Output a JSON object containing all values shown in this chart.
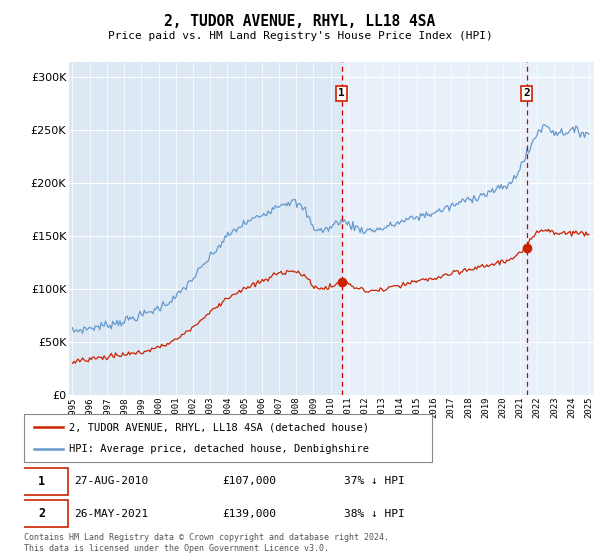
{
  "title": "2, TUDOR AVENUE, RHYL, LL18 4SA",
  "subtitle": "Price paid vs. HM Land Registry's House Price Index (HPI)",
  "ytick_values": [
    0,
    50000,
    100000,
    150000,
    200000,
    250000,
    300000
  ],
  "ylim": [
    0,
    315000
  ],
  "xlim_start": 1994.8,
  "xlim_end": 2025.3,
  "plot_bg_color_left": "#dce9f5",
  "plot_bg_color_right": "#e8f1fa",
  "fig_bg_color": "#ffffff",
  "grid_color": "#ffffff",
  "hpi_color": "#6699cc",
  "price_color": "#cc2200",
  "vline_color": "#cc0000",
  "sale1_x": 2010.65,
  "sale1_y": 107000,
  "sale2_x": 2021.4,
  "sale2_y": 139000,
  "sale1_label": "1",
  "sale2_label": "2",
  "sale1_date": "27-AUG-2010",
  "sale1_price": "£107,000",
  "sale1_note": "37% ↓ HPI",
  "sale2_date": "26-MAY-2021",
  "sale2_price": "£139,000",
  "sale2_note": "38% ↓ HPI",
  "legend_line1": "2, TUDOR AVENUE, RHYL, LL18 4SA (detached house)",
  "legend_line2": "HPI: Average price, detached house, Denbighshire",
  "footer": "Contains HM Land Registry data © Crown copyright and database right 2024.\nThis data is licensed under the Open Government Licence v3.0."
}
